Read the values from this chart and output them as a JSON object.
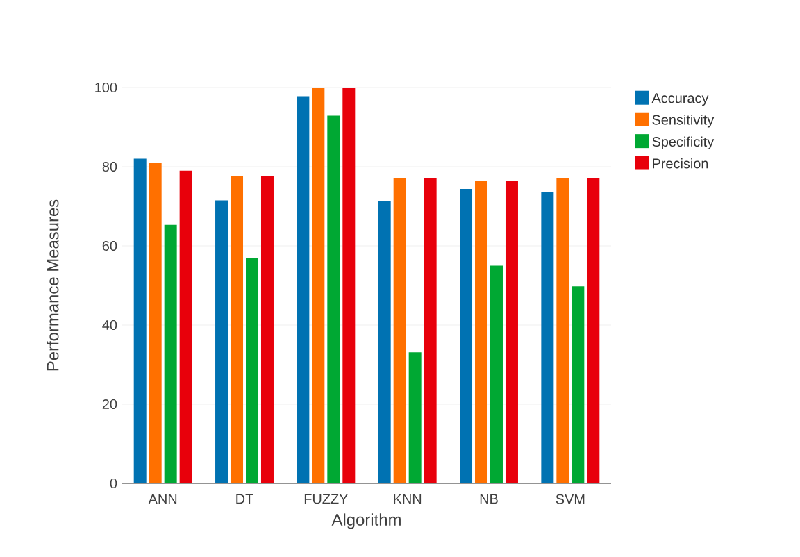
{
  "chart_data": {
    "type": "bar",
    "xlabel": "Algorithm",
    "ylabel": "Performance Measures",
    "categories": [
      "ANN",
      "DT",
      "FUZZY",
      "KNN",
      "NB",
      "SVM"
    ],
    "series": [
      {
        "name": "Accuracy",
        "color": "#0072b2",
        "values": [
          82,
          71.5,
          97.8,
          71.3,
          74.4,
          73.5
        ]
      },
      {
        "name": "Sensitivity",
        "color": "#ff7000",
        "values": [
          81,
          77.7,
          100,
          77.1,
          76.4,
          77.1
        ]
      },
      {
        "name": "Specificity",
        "color": "#00a833",
        "values": [
          65.3,
          57,
          92.9,
          33.1,
          55,
          49.8
        ]
      },
      {
        "name": "Precision",
        "color": "#e8000b",
        "values": [
          79,
          77.7,
          100,
          77.1,
          76.4,
          77.1
        ]
      }
    ],
    "ylim": [
      0,
      100
    ],
    "yticks": [
      0,
      20,
      40,
      60,
      80,
      100
    ],
    "grid": "y",
    "legend": "top right"
  }
}
